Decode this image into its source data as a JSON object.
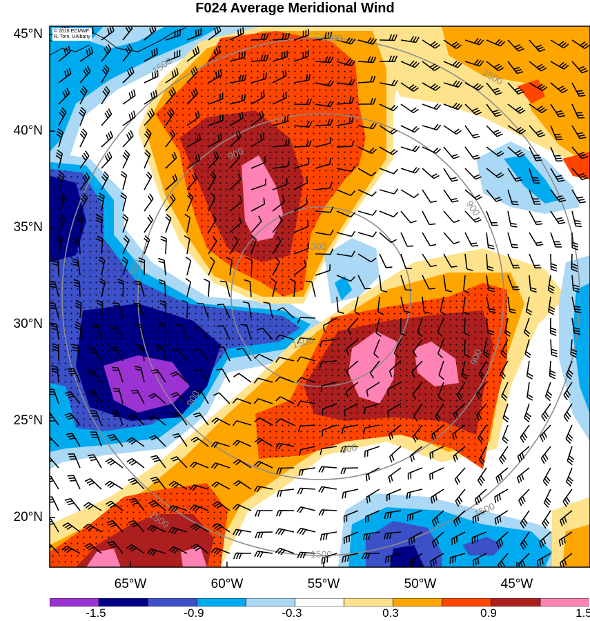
{
  "title": "F024 Average Meridional Wind",
  "credit": {
    "line1": "© 2016 ECMWF",
    "line2": "R. Torn, UAlbany"
  },
  "latitude_labels": [
    "45°N",
    "40°N",
    "35°N",
    "30°N",
    "25°N",
    "20°N"
  ],
  "longitude_labels": [
    "65°W",
    "60°W",
    "55°W",
    "50°W",
    "45°W"
  ],
  "colorbar": {
    "tick_labels": [
      "-1.5",
      "-0.9",
      "-0.3",
      "0.3",
      "0.9",
      "1.5"
    ],
    "colors": [
      "#9b32d2",
      "#000087",
      "#3c50c8",
      "#00aaee",
      "#aad8f5",
      "#ffffff",
      "#ffe38c",
      "#ffa500",
      "#ff4500",
      "#ad1f1f",
      "#ff82b4"
    ]
  },
  "contour_labels": [
    "1500",
    "1500",
    "1500",
    "900",
    "900",
    "900",
    "900",
    "900",
    "300",
    "1500",
    "1500",
    "1500",
    "900",
    "1500"
  ]
}
